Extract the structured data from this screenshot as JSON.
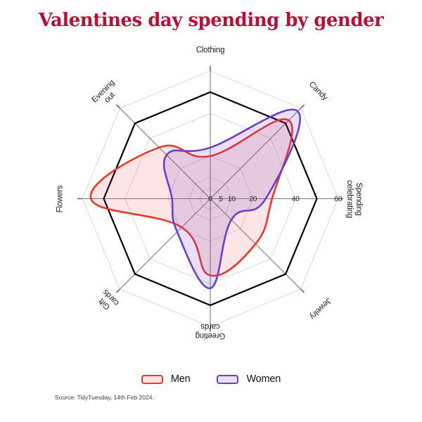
{
  "title": "Valentines day spending by gender",
  "source": "Source: TidyTuesday, 14th Feb 2024.",
  "colors": {
    "title": "#b90f37",
    "men_stroke": "#e8392b",
    "men_fill": "rgba(232,57,43,0.13)",
    "women_stroke": "#6e40c9",
    "women_fill": "rgba(110,64,201,0.16)",
    "grid_minor": "#d9d9d9",
    "grid_major": "#000000",
    "spoke": "#7a7a7a",
    "spoke_tick": "#4a4a4a",
    "tick_text": "#2a2a2a",
    "label_text": "#1f1f1f"
  },
  "legend": {
    "items": [
      {
        "label": "Men",
        "stroke": "#e8392b",
        "fill": "#fbe4e1"
      },
      {
        "label": "Women",
        "stroke": "#6e40c9",
        "fill": "#e9e1f6"
      }
    ]
  },
  "chart_data": {
    "type": "radar",
    "title": "Valentines day spending by gender",
    "categories": [
      "Clothing",
      "Candy",
      "Spending celebrating",
      "Jewelry",
      "Greeting cards",
      "Gift cards",
      "Flowers",
      "Evening out"
    ],
    "series": [
      {
        "name": "Men",
        "values": [
          20,
          52,
          29,
          30,
          36,
          19,
          56,
          34
        ]
      },
      {
        "name": "Women",
        "values": [
          24,
          58,
          26,
          14,
          42,
          22,
          18,
          29
        ]
      }
    ],
    "scale": {
      "ticks": [
        0,
        5,
        10,
        20,
        40,
        60
      ],
      "minor_rings": [
        5,
        10,
        20,
        40,
        60
      ],
      "major_ring": 50,
      "max": 60
    },
    "grid": "octagon",
    "legend_position": "bottom",
    "smoothing": "closed spline through axis points"
  },
  "axes": [
    {
      "label": "Clothing",
      "angle": 0,
      "radius": 211
    },
    {
      "label": "Candy",
      "angle": 45,
      "radius": 216
    },
    {
      "label": "Spending\ncelebrating",
      "angle": 90,
      "radius": 204
    },
    {
      "label": "Jewelry",
      "angle": 135,
      "radius": 220
    },
    {
      "label": "Greeting\ncards",
      "angle": 180,
      "radius": 187
    },
    {
      "label": "Gift\ncards",
      "angle": 225,
      "radius": 205
    },
    {
      "label": "Flowers",
      "angle": 270,
      "radius": 213
    },
    {
      "label": "Evening\nout",
      "angle": 315,
      "radius": 208
    }
  ]
}
